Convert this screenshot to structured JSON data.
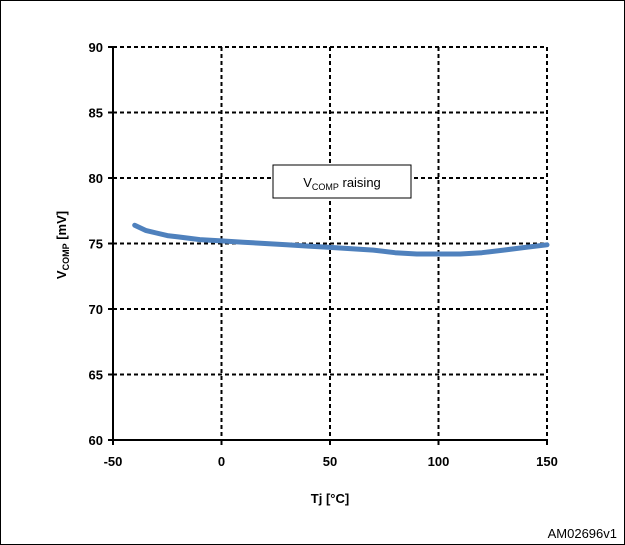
{
  "chart_data": {
    "type": "line",
    "xlabel": "Tj [°C]",
    "ylabel": {
      "base": "V",
      "sub": "COMP",
      "rest": " [mV]"
    },
    "xlim": [
      -50,
      150
    ],
    "ylim": [
      60,
      90
    ],
    "xticks": [
      -50,
      0,
      50,
      100,
      150
    ],
    "yticks": [
      60,
      65,
      70,
      75,
      80,
      85,
      90
    ],
    "grid": true,
    "series": [
      {
        "color": "#4f81bd",
        "x": [
          -40,
          -35,
          -30,
          -25,
          -20,
          -10,
          0,
          10,
          20,
          30,
          40,
          50,
          60,
          70,
          80,
          90,
          100,
          110,
          120,
          130,
          140,
          150
        ],
        "y": [
          76.4,
          76.0,
          75.8,
          75.6,
          75.5,
          75.3,
          75.2,
          75.1,
          75.0,
          74.9,
          74.8,
          74.7,
          74.6,
          74.5,
          74.3,
          74.2,
          74.2,
          74.2,
          74.3,
          74.5,
          74.7,
          74.9
        ]
      }
    ],
    "annotation": {
      "base": "V",
      "sub": "COMP",
      "rest": " raising"
    }
  },
  "figure_id": "AM02696v1"
}
